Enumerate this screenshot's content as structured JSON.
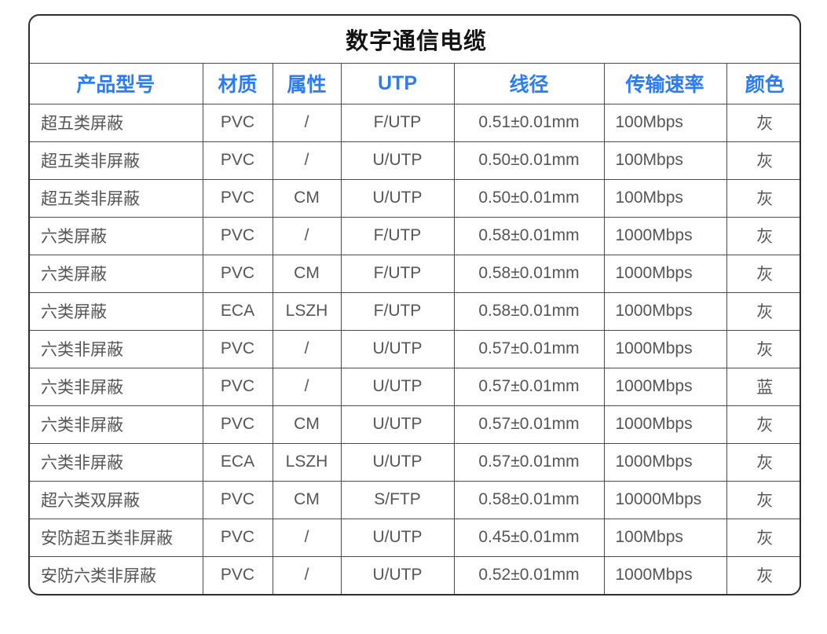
{
  "table": {
    "title": "数字通信电缆",
    "columns": [
      {
        "key": "model",
        "label": "产品型号",
        "align": "left"
      },
      {
        "key": "material",
        "label": "材质",
        "align": "center"
      },
      {
        "key": "attribute",
        "label": "属性",
        "align": "center"
      },
      {
        "key": "utp",
        "label": "UTP",
        "align": "center"
      },
      {
        "key": "diameter",
        "label": "线径",
        "align": "center"
      },
      {
        "key": "speed",
        "label": "传输速率",
        "align": "left"
      },
      {
        "key": "color",
        "label": "颜色",
        "align": "center"
      }
    ],
    "rows": [
      [
        "超五类屏蔽",
        "PVC",
        "/",
        "F/UTP",
        "0.51±0.01mm",
        "100Mbps",
        "灰"
      ],
      [
        "超五类非屏蔽",
        "PVC",
        "/",
        "U/UTP",
        "0.50±0.01mm",
        "100Mbps",
        "灰"
      ],
      [
        "超五类非屏蔽",
        "PVC",
        "CM",
        "U/UTP",
        "0.50±0.01mm",
        "100Mbps",
        "灰"
      ],
      [
        "六类屏蔽",
        "PVC",
        "/",
        "F/UTP",
        "0.58±0.01mm",
        "1000Mbps",
        "灰"
      ],
      [
        "六类屏蔽",
        "PVC",
        "CM",
        "F/UTP",
        "0.58±0.01mm",
        "1000Mbps",
        "灰"
      ],
      [
        "六类屏蔽",
        "ECA",
        "LSZH",
        "F/UTP",
        "0.58±0.01mm",
        "1000Mbps",
        "灰"
      ],
      [
        "六类非屏蔽",
        "PVC",
        "/",
        "U/UTP",
        "0.57±0.01mm",
        "1000Mbps",
        "灰"
      ],
      [
        "六类非屏蔽",
        "PVC",
        "/",
        "U/UTP",
        "0.57±0.01mm",
        "1000Mbps",
        "蓝"
      ],
      [
        "六类非屏蔽",
        "PVC",
        "CM",
        "U/UTP",
        "0.57±0.01mm",
        "1000Mbps",
        "灰"
      ],
      [
        "六类非屏蔽",
        "ECA",
        "LSZH",
        "U/UTP",
        "0.57±0.01mm",
        "1000Mbps",
        "灰"
      ],
      [
        "超六类双屏蔽",
        "PVC",
        "CM",
        "S/FTP",
        "0.58±0.01mm",
        "10000Mbps",
        "灰"
      ],
      [
        "安防超五类非屏蔽",
        "PVC",
        "/",
        "U/UTP",
        "0.45±0.01mm",
        "100Mbps",
        "灰"
      ],
      [
        "安防六类非屏蔽",
        "PVC",
        "/",
        "U/UTP",
        "0.52±0.01mm",
        "1000Mbps",
        "灰"
      ]
    ],
    "colors": {
      "header_text": "#2b7bff",
      "body_text": "#555555",
      "title_text": "#141414",
      "grid_border": "#4a4a4a",
      "outer_border": "#2e2e2e",
      "background": "#ffffff"
    }
  }
}
